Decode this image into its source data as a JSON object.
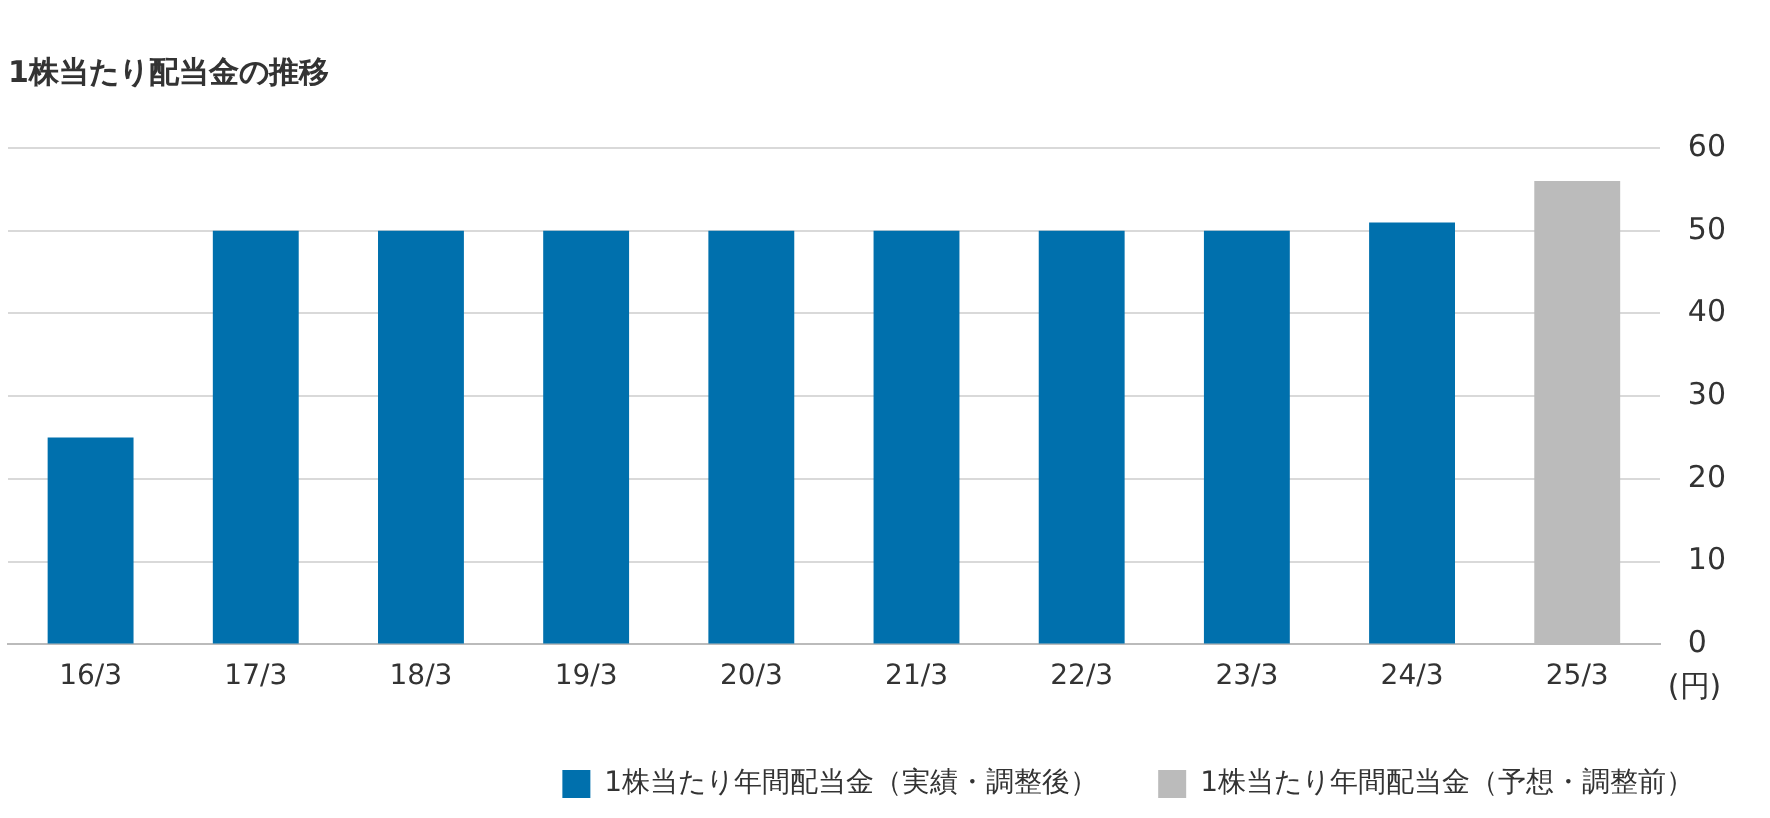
{
  "chart_data": {
    "type": "bar",
    "title": "1株当たり配当金の推移",
    "ylabel": "(円)",
    "categories": [
      "16/3",
      "17/3",
      "18/3",
      "19/3",
      "20/3",
      "21/3",
      "22/3",
      "23/3",
      "24/3",
      "25/3"
    ],
    "series": [
      {
        "name": "1株当たり年間配当金（実績・調整後）",
        "color": "#0070ad",
        "values": [
          25,
          50,
          50,
          50,
          50,
          50,
          50,
          50,
          51,
          null
        ]
      },
      {
        "name": "1株当たり年間配当金（予想・調整前）",
        "color": "#bbbbbb",
        "values": [
          null,
          null,
          null,
          null,
          null,
          null,
          null,
          null,
          null,
          56
        ]
      }
    ],
    "ylim": [
      0,
      60
    ],
    "yticks": [
      0,
      10,
      20,
      30,
      40,
      50,
      60
    ],
    "grid": "y",
    "legend": "bottom"
  }
}
